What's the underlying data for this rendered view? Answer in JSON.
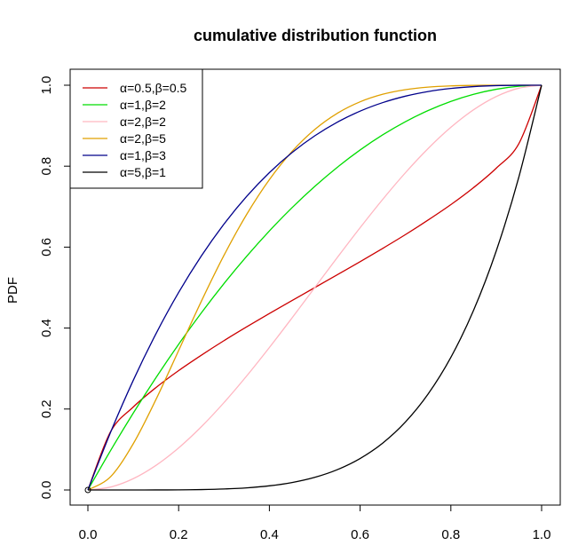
{
  "chart_data": {
    "type": "line",
    "title": "cumulative distribution function",
    "xlabel": "",
    "ylabel": "PDF",
    "xlim": [
      0,
      1
    ],
    "ylim": [
      0,
      1
    ],
    "x_ticks": [
      "0.0",
      "0.2",
      "0.4",
      "0.6",
      "0.8",
      "1.0"
    ],
    "y_ticks": [
      "0.0",
      "0.2",
      "0.4",
      "0.6",
      "0.8",
      "1.0"
    ],
    "legend_position": "top-left",
    "grid": false,
    "x": [
      0,
      0.05,
      0.1,
      0.15,
      0.2,
      0.25,
      0.3,
      0.35,
      0.4,
      0.45,
      0.5,
      0.55,
      0.6,
      0.65,
      0.7,
      0.75,
      0.8,
      0.85,
      0.9,
      0.95,
      1.0
    ],
    "series": [
      {
        "name": "α=0.5,β=0.5",
        "color": "#cc0000",
        "values": [
          0,
          0.144,
          0.205,
          0.253,
          0.295,
          0.333,
          0.369,
          0.403,
          0.436,
          0.468,
          0.5,
          0.532,
          0.564,
          0.597,
          0.631,
          0.667,
          0.705,
          0.747,
          0.795,
          0.856,
          1.0
        ]
      },
      {
        "name": "α=1,β=2",
        "color": "#00dd00",
        "values": [
          0,
          0.0975,
          0.19,
          0.2775,
          0.36,
          0.4375,
          0.51,
          0.5775,
          0.64,
          0.6975,
          0.75,
          0.7975,
          0.84,
          0.8775,
          0.91,
          0.9375,
          0.96,
          0.9775,
          0.99,
          0.9975,
          1.0
        ]
      },
      {
        "name": "α=2,β=2",
        "color": "#ffb6c1",
        "values": [
          0,
          0.00725,
          0.028,
          0.06075,
          0.104,
          0.15625,
          0.216,
          0.28175,
          0.352,
          0.42525,
          0.5,
          0.57475,
          0.648,
          0.71825,
          0.784,
          0.84375,
          0.896,
          0.93925,
          0.972,
          0.99275,
          1.0
        ]
      },
      {
        "name": "α=2,β=5",
        "color": "#e0a000",
        "values": [
          0,
          0.0328,
          0.1143,
          0.2235,
          0.3446,
          0.4661,
          0.5798,
          0.6809,
          0.7667,
          0.8364,
          0.8906,
          0.9308,
          0.959,
          0.9777,
          0.9891,
          0.9954,
          0.9984,
          0.9996,
          0.9999,
          1.0,
          1.0
        ]
      },
      {
        "name": "α=1,β=3",
        "color": "#00008b",
        "values": [
          0,
          0.1426,
          0.271,
          0.3859,
          0.488,
          0.5781,
          0.657,
          0.7254,
          0.784,
          0.8336,
          0.875,
          0.9089,
          0.936,
          0.9571,
          0.973,
          0.9844,
          0.992,
          0.9966,
          0.999,
          0.9999,
          1.0
        ]
      },
      {
        "name": "α=5,β=1",
        "color": "#000000",
        "values": [
          0,
          0,
          1e-05,
          8e-05,
          0.00032,
          0.00098,
          0.00243,
          0.00525,
          0.01024,
          0.01845,
          0.03125,
          0.05033,
          0.07776,
          0.11603,
          0.16807,
          0.2373,
          0.32768,
          0.4437,
          0.59049,
          0.77378,
          1.0
        ]
      }
    ]
  }
}
